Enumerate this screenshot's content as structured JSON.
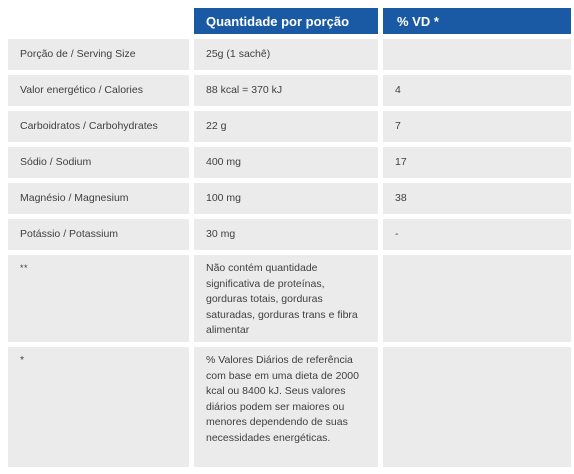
{
  "header": {
    "col1": "",
    "col2": "Quantidade por porção",
    "col3": "% VD *"
  },
  "rows": [
    {
      "label": "Porção de / Serving Size",
      "qty": "25g (1 sachê)",
      "vd": ""
    },
    {
      "label": "Valor energético / Calories",
      "qty": "88 kcal = 370 kJ",
      "vd": "4"
    },
    {
      "label": "Carboidratos / Carbohydrates",
      "qty": "22 g",
      "vd": "7"
    },
    {
      "label": "Sódio / Sodium",
      "qty": "400 mg",
      "vd": "17"
    },
    {
      "label": "Magnésio / Magnesium",
      "qty": "100 mg",
      "vd": "38"
    },
    {
      "label": "Potássio / Potassium",
      "qty": "30 mg",
      "vd": "-"
    }
  ],
  "notes": [
    {
      "label": "**",
      "text": "Não contém quantidade significativa de proteínas, gorduras totais, gorduras saturadas, gorduras trans e fibra alimentar",
      "vd": ""
    },
    {
      "label": "*",
      "text": "% Valores Diários de referência com base em uma dieta de 2000 kcal ou 8400 kJ. Seus valores diários podem ser maiores ou menores dependendo de suas necessidades energéticas.",
      "vd": ""
    }
  ]
}
